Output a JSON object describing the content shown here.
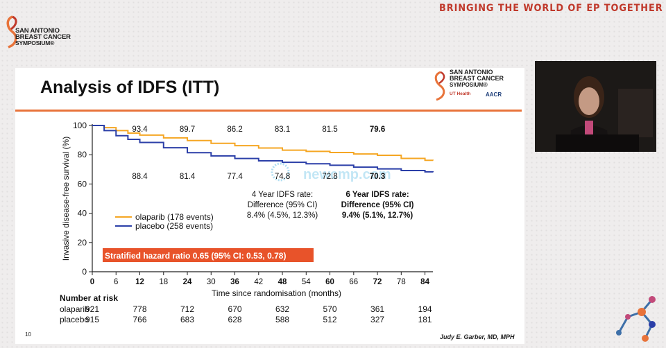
{
  "header": {
    "tagline": "BRINGING THE WORLD OF EP TOGETHER",
    "logo_text": [
      "SAN ANTONIO",
      "BREAST CANCER",
      "SYMPOSIUM®"
    ]
  },
  "slide": {
    "title": "Analysis of IDFS (ITT)",
    "logo_text": [
      "SAN ANTONIO",
      "BREAST CANCER",
      "SYMPOSIUM®"
    ],
    "logo_ut": "UT Health",
    "logo_aacr": "AACR",
    "page_number": "10",
    "presenter": "Judy E. Garber, MD, MPH",
    "watermark": "newcmp.com"
  },
  "colors": {
    "accent": "#e8733a",
    "olaparib": "#f5a623",
    "placebo": "#2b3fa8",
    "hr_box": "#e8532a"
  },
  "chart_data": {
    "type": "line",
    "title": "",
    "xlabel": "Time since randomisation (months)",
    "ylabel": "Invasive disease-free survival (%)",
    "xlim": [
      0,
      86
    ],
    "ylim": [
      0,
      100
    ],
    "x_ticks": [
      0,
      6,
      12,
      18,
      24,
      30,
      36,
      42,
      48,
      54,
      60,
      66,
      72,
      78,
      84
    ],
    "x_ticks_bold": [
      0,
      12,
      24,
      36,
      48,
      60,
      72,
      84
    ],
    "y_ticks": [
      0,
      20,
      40,
      60,
      80,
      100
    ],
    "series": [
      {
        "name": "olaparib (178 events)",
        "color": "#f5a623",
        "x": [
          0,
          3,
          6,
          9,
          12,
          18,
          24,
          30,
          36,
          42,
          48,
          54,
          60,
          66,
          72,
          78,
          84,
          86
        ],
        "y": [
          100,
          98.5,
          96.5,
          94.8,
          93.4,
          91.5,
          89.7,
          87.8,
          86.2,
          84.6,
          83.1,
          82.3,
          81.5,
          80.5,
          79.6,
          77.5,
          76.2,
          76
        ]
      },
      {
        "name": "placebo (258 events)",
        "color": "#2b3fa8",
        "x": [
          0,
          3,
          6,
          9,
          12,
          18,
          24,
          30,
          36,
          42,
          48,
          54,
          60,
          66,
          72,
          78,
          84,
          86
        ],
        "y": [
          100,
          96.5,
          93,
          90.5,
          88.4,
          84.8,
          81.4,
          79.2,
          77.4,
          75.8,
          74.8,
          73.8,
          72.8,
          71.5,
          70.3,
          69.2,
          68.3,
          68
        ]
      }
    ],
    "annotations_top": [
      {
        "x": 12,
        "text": "93.4",
        "bold": false
      },
      {
        "x": 24,
        "text": "89.7",
        "bold": false
      },
      {
        "x": 36,
        "text": "86.2",
        "bold": false
      },
      {
        "x": 48,
        "text": "83.1",
        "bold": false
      },
      {
        "x": 60,
        "text": "81.5",
        "bold": false
      },
      {
        "x": 72,
        "text": "79.6",
        "bold": true
      }
    ],
    "annotations_bottom": [
      {
        "x": 12,
        "text": "88.4",
        "bold": false
      },
      {
        "x": 24,
        "text": "81.4",
        "bold": false
      },
      {
        "x": 36,
        "text": "77.4",
        "bold": false
      },
      {
        "x": 48,
        "text": "74.8",
        "bold": false
      },
      {
        "x": 60,
        "text": "72.8",
        "bold": false
      },
      {
        "x": 72,
        "text": "70.3",
        "bold": true
      }
    ],
    "idfs4": [
      "4 Year IDFS rate:",
      "Difference (95% CI)",
      "8.4% (4.5%, 12.3%)"
    ],
    "idfs6": [
      "6 Year IDFS rate:",
      "Difference (95% CI)",
      "9.4% (5.1%, 12.7%)"
    ],
    "hazard_ratio": "Stratified hazard ratio 0.65 (95% CI: 0.53, 0.78)",
    "risk_table": {
      "header": "Number at risk",
      "x": [
        0,
        12,
        24,
        36,
        48,
        60,
        72,
        84
      ],
      "rows": [
        {
          "label": "olaparib",
          "values": [
            "921",
            "778",
            "712",
            "670",
            "632",
            "570",
            "361",
            "194"
          ]
        },
        {
          "label": "placebo",
          "values": [
            "915",
            "766",
            "683",
            "628",
            "588",
            "512",
            "327",
            "181"
          ]
        }
      ]
    }
  }
}
